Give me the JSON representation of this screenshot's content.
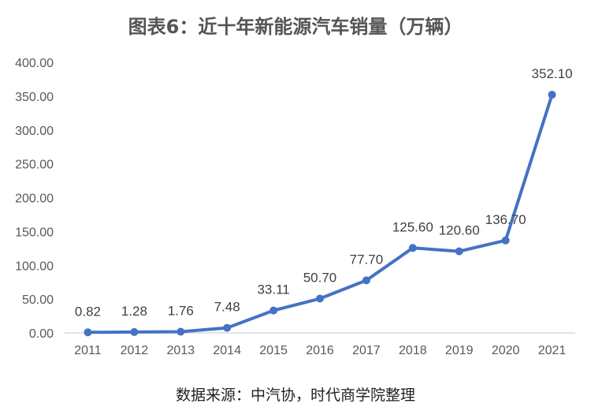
{
  "chart_data": {
    "type": "line",
    "title": "图表6：近十年新能源汽车销量（万辆）",
    "source": "数据来源：中汽协，时代商学院整理",
    "categories": [
      "2011",
      "2012",
      "2013",
      "2014",
      "2015",
      "2016",
      "2017",
      "2018",
      "2019",
      "2020",
      "2021"
    ],
    "series": [
      {
        "values": [
          0.82,
          1.28,
          1.76,
          7.48,
          33.11,
          50.7,
          77.7,
          125.6,
          120.6,
          136.7,
          352.1
        ]
      }
    ],
    "data_labels": [
      "0.82",
      "1.28",
      "1.76",
      "7.48",
      "33.11",
      "50.70",
      "77.70",
      "125.60",
      "120.60",
      "136.70",
      "352.10"
    ],
    "y_ticks": [
      "0.00",
      "50.00",
      "100.00",
      "150.00",
      "200.00",
      "250.00",
      "300.00",
      "350.00",
      "400.00"
    ],
    "ylim": [
      0,
      400
    ],
    "grid": false,
    "legend": "none",
    "colors": {
      "line": "#4472C4",
      "axis": "#D9D9D9",
      "title": "#555555"
    }
  }
}
